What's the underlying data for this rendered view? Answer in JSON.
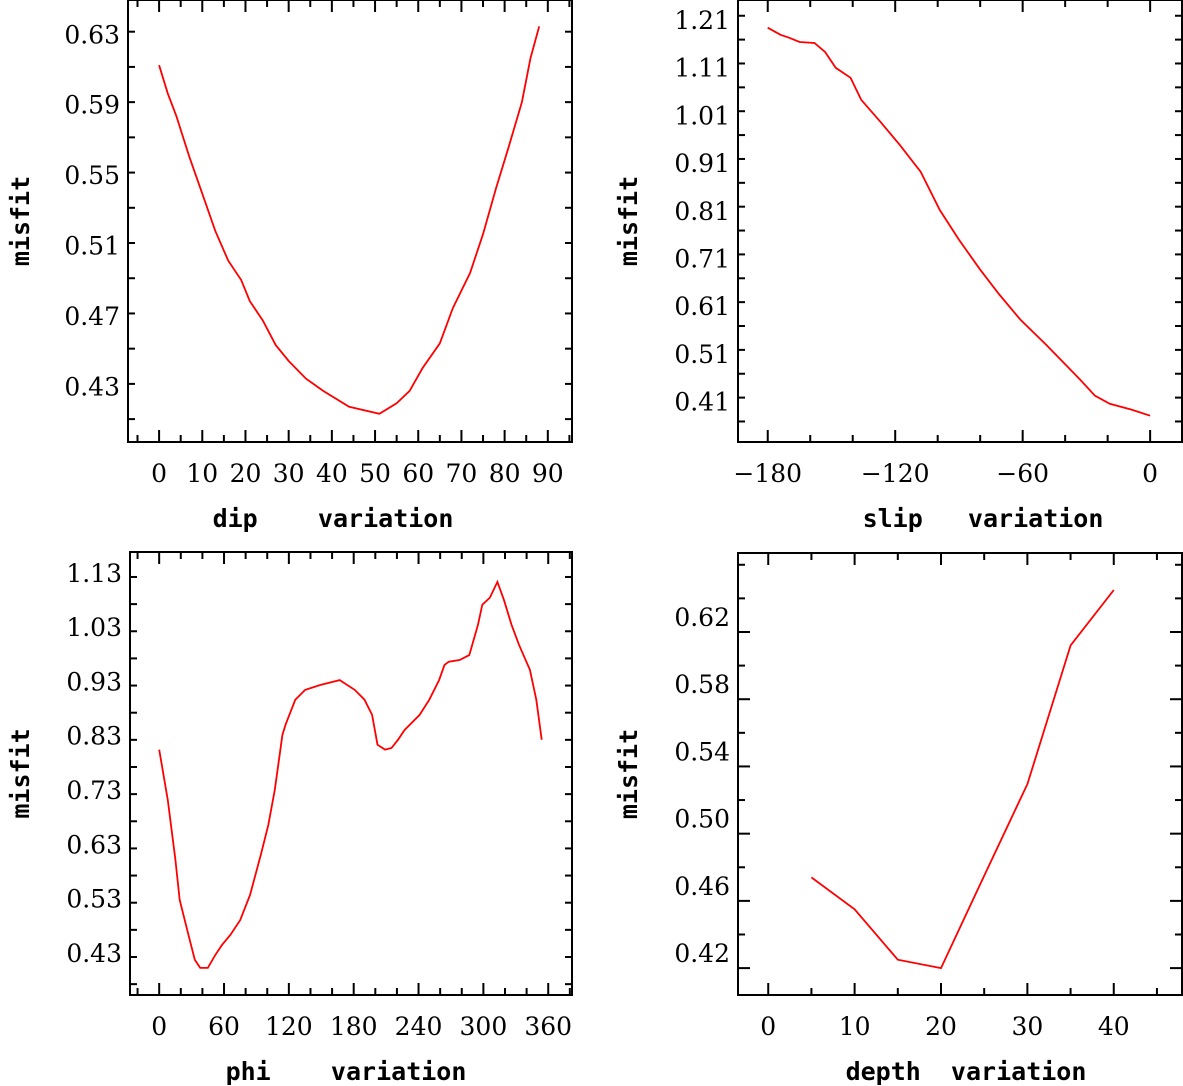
{
  "chart_data": [
    {
      "type": "line",
      "xlabel": "dip    variation",
      "ylabel": "misfit",
      "xlim": [
        -7.2,
        95.6
      ],
      "ylim": [
        0.407,
        0.658
      ],
      "xticks_major": [
        0,
        10,
        20,
        30,
        40,
        50,
        60,
        70,
        80,
        90
      ],
      "xtick_labels": [
        "0",
        "10",
        "20",
        "30",
        "40",
        "50",
        "60",
        "70",
        "80",
        "90"
      ],
      "xticks_minor_step": 5,
      "yticks_major": [
        0.43,
        0.47,
        0.51,
        0.55,
        0.59,
        0.63
      ],
      "ytick_labels": [
        "0.43",
        "0.47",
        "0.51",
        "0.55",
        "0.59",
        "0.63"
      ],
      "yticks_minor_step": 0.02,
      "color": "#ff0000",
      "x": [
        0,
        2,
        4,
        7,
        10,
        13,
        16,
        19,
        21,
        24,
        27,
        30,
        34,
        38,
        44,
        51,
        55,
        58,
        61,
        65,
        68,
        72,
        75,
        78,
        81,
        84,
        86,
        88
      ],
      "y": [
        0.621,
        0.605,
        0.592,
        0.569,
        0.548,
        0.527,
        0.51,
        0.499,
        0.487,
        0.476,
        0.462,
        0.453,
        0.443,
        0.436,
        0.427,
        0.423,
        0.429,
        0.436,
        0.449,
        0.463,
        0.483,
        0.503,
        0.525,
        0.551,
        0.575,
        0.6,
        0.625,
        0.643
      ]
    },
    {
      "type": "line",
      "xlabel": "slip   variation",
      "ylabel": "misfit",
      "xlim": [
        -194,
        15
      ],
      "ylim": [
        0.357,
        1.283
      ],
      "xticks_major": [
        -180,
        -120,
        -60,
        0
      ],
      "xtick_labels": [
        "−180",
        "−120",
        "−60",
        "0"
      ],
      "xticks_minor_step": 20,
      "yticks_major": [
        0.41,
        0.51,
        0.61,
        0.71,
        0.81,
        0.91,
        1.01,
        1.11,
        1.21
      ],
      "ytick_labels": [
        "0.41",
        "0.51",
        "0.61",
        "0.71",
        "0.81",
        "0.91",
        "1.01",
        "1.11",
        "1.21"
      ],
      "yticks_minor_step": 0.05,
      "color": "#ff0000",
      "x": [
        -180,
        -174,
        -170,
        -165,
        -158,
        -153,
        -148,
        -141,
        -136,
        -127,
        -118,
        -108,
        -99,
        -90,
        -80,
        -71,
        -61,
        -49,
        -42,
        -33,
        -26,
        -19,
        -9,
        0
      ],
      "y": [
        1.225,
        1.21,
        1.204,
        1.195,
        1.193,
        1.174,
        1.141,
        1.12,
        1.074,
        1.028,
        0.98,
        0.923,
        0.843,
        0.781,
        0.718,
        0.666,
        0.613,
        0.561,
        0.529,
        0.488,
        0.454,
        0.437,
        0.425,
        0.412
      ]
    },
    {
      "type": "line",
      "xlabel": "phi    variation",
      "ylabel": "misfit",
      "xlim": [
        -27,
        382
      ],
      "ylim": [
        0.38,
        1.196
      ],
      "xticks_major": [
        0,
        60,
        120,
        180,
        240,
        300,
        360
      ],
      "xtick_labels": [
        "0",
        "60",
        "120",
        "180",
        "240",
        "300",
        "360"
      ],
      "xticks_minor_step": 20,
      "yticks_major": [
        0.43,
        0.53,
        0.63,
        0.73,
        0.83,
        0.93,
        1.03,
        1.13
      ],
      "ytick_labels": [
        "0.43",
        "0.53",
        "0.63",
        "0.73",
        "0.83",
        "0.93",
        "1.03",
        "1.13"
      ],
      "yticks_minor_step": 0.05,
      "color": "#ff0000",
      "x": [
        0,
        8,
        15,
        19,
        27,
        33,
        38,
        45,
        52,
        58,
        66,
        75,
        84,
        94,
        101,
        107,
        114,
        117,
        126,
        135,
        149,
        167,
        181,
        190,
        197,
        202,
        209,
        215,
        221,
        227,
        241,
        250,
        259,
        264,
        268,
        278,
        287,
        295,
        299,
        306,
        313,
        319,
        326,
        333,
        343,
        349,
        354
      ],
      "y": [
        0.832,
        0.739,
        0.629,
        0.555,
        0.491,
        0.445,
        0.43,
        0.43,
        0.454,
        0.472,
        0.491,
        0.518,
        0.564,
        0.638,
        0.693,
        0.758,
        0.859,
        0.878,
        0.924,
        0.942,
        0.951,
        0.96,
        0.942,
        0.924,
        0.896,
        0.841,
        0.832,
        0.835,
        0.85,
        0.868,
        0.896,
        0.924,
        0.96,
        0.988,
        0.994,
        0.997,
        1.006,
        1.062,
        1.099,
        1.112,
        1.141,
        1.108,
        1.062,
        1.025,
        0.979,
        0.924,
        0.85
      ]
    },
    {
      "type": "line",
      "xlabel": "depth  variation",
      "ylabel": "misfit",
      "xlim": [
        -3.5,
        47.9
      ],
      "ylim": [
        0.404,
        0.667
      ],
      "xticks_major": [
        0,
        10,
        20,
        30,
        40
      ],
      "xtick_labels": [
        "0",
        "10",
        "20",
        "30",
        "40"
      ],
      "xticks_minor_step": 5,
      "yticks_major": [
        0.42,
        0.46,
        0.5,
        0.54,
        0.58,
        0.62
      ],
      "ytick_labels": [
        "0.42",
        "0.46",
        "0.50",
        "0.54",
        "0.58",
        "0.62"
      ],
      "yticks_minor_step": 0.02,
      "color": "#ff0000",
      "x": [
        5,
        10,
        15,
        20,
        25,
        30,
        35,
        40
      ],
      "y": [
        0.474,
        0.455,
        0.425,
        0.42,
        0.475,
        0.5295,
        0.612,
        0.645
      ]
    }
  ]
}
